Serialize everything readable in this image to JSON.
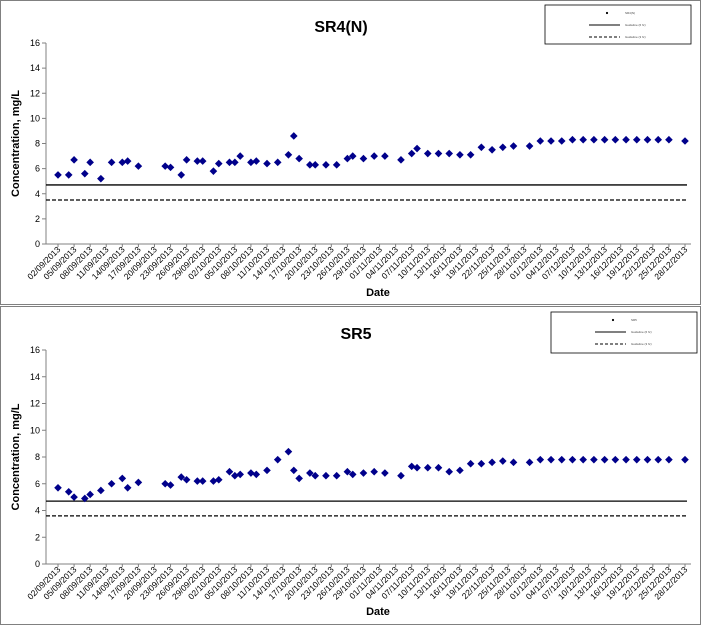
{
  "chart_data": [
    {
      "type": "scatter",
      "title": "SR4(N)",
      "xlabel": "Date",
      "ylabel": "Concentration, mg/L",
      "ylim": [
        0,
        16
      ],
      "yticks": [
        0,
        2,
        4,
        6,
        8,
        10,
        12,
        14,
        16
      ],
      "grid": false,
      "legend_position": "top-right",
      "x_tick_labels": [
        "02/09/2013",
        "05/09/2013",
        "08/09/2013",
        "11/09/2013",
        "14/09/2013",
        "17/09/2013",
        "20/09/2013",
        "23/09/2013",
        "26/09/2013",
        "29/09/2013",
        "02/10/2013",
        "05/10/2013",
        "08/10/2013",
        "11/10/2013",
        "14/10/2013",
        "17/10/2013",
        "20/10/2013",
        "23/10/2013",
        "26/10/2013",
        "29/10/2013",
        "01/11/2013",
        "04/11/2013",
        "07/11/2013",
        "10/11/2013",
        "13/11/2013",
        "16/11/2013",
        "19/11/2013",
        "22/11/2013",
        "25/11/2013",
        "28/11/2013",
        "01/12/2013",
        "04/12/2013",
        "07/12/2013",
        "10/12/2013",
        "13/12/2013",
        "16/12/2013",
        "19/12/2013",
        "22/12/2013",
        "25/12/2013",
        "28/12/2013"
      ],
      "series": [
        {
          "type": "scatter",
          "marker": "diamond",
          "color": "#00008b",
          "x": [
            "02/09/2013",
            "04/09/2013",
            "05/09/2013",
            "07/09/2013",
            "08/09/2013",
            "10/09/2013",
            "12/09/2013",
            "14/09/2013",
            "15/09/2013",
            "17/09/2013",
            "22/09/2013",
            "23/09/2013",
            "25/09/2013",
            "26/09/2013",
            "28/09/2013",
            "29/09/2013",
            "01/10/2013",
            "02/10/2013",
            "04/10/2013",
            "05/10/2013",
            "06/10/2013",
            "08/10/2013",
            "09/10/2013",
            "11/10/2013",
            "13/10/2013",
            "15/10/2013",
            "16/10/2013",
            "17/10/2013",
            "19/10/2013",
            "20/10/2013",
            "22/10/2013",
            "24/10/2013",
            "26/10/2013",
            "27/10/2013",
            "29/10/2013",
            "31/10/2013",
            "02/11/2013",
            "05/11/2013",
            "07/11/2013",
            "08/11/2013",
            "10/11/2013",
            "12/11/2013",
            "14/11/2013",
            "16/11/2013",
            "18/11/2013",
            "20/11/2013",
            "22/11/2013",
            "24/11/2013",
            "26/11/2013",
            "29/11/2013",
            "01/12/2013",
            "03/12/2013",
            "05/12/2013",
            "07/12/2013",
            "09/12/2013",
            "11/12/2013",
            "13/12/2013",
            "15/12/2013",
            "17/12/2013",
            "19/12/2013",
            "21/12/2013",
            "23/12/2013",
            "25/12/2013",
            "28/12/2013"
          ],
          "y": [
            5.5,
            5.5,
            6.7,
            5.6,
            6.5,
            5.2,
            6.5,
            6.5,
            6.6,
            6.2,
            6.2,
            6.1,
            5.5,
            6.7,
            6.6,
            6.6,
            5.8,
            6.4,
            6.5,
            6.5,
            7.0,
            6.5,
            6.6,
            6.4,
            6.5,
            7.1,
            8.6,
            6.8,
            6.3,
            6.3,
            6.3,
            6.3,
            6.8,
            7.0,
            6.8,
            7.0,
            7.0,
            6.7,
            7.2,
            7.6,
            7.2,
            7.2,
            7.2,
            7.1,
            7.1,
            7.7,
            7.5,
            7.7,
            7.8,
            7.8,
            8.2,
            8.2,
            8.2,
            8.3,
            8.3,
            8.3,
            8.3,
            8.3,
            8.3,
            8.3,
            8.3,
            8.3,
            8.3,
            8.2
          ]
        },
        {
          "type": "line",
          "style": "solid",
          "color": "#000000",
          "y": 4.7
        },
        {
          "type": "line",
          "style": "dashed",
          "color": "#000000",
          "y": 3.5
        }
      ],
      "legend": [
        {
          "marker": "dot",
          "label": "SR4(N)"
        },
        {
          "line": "solid",
          "label": "Guideline (6 hr)"
        },
        {
          "line": "dashed",
          "label": "Guideline (3 hr)"
        }
      ]
    },
    {
      "type": "scatter",
      "title": "SR5",
      "xlabel": "Date",
      "ylabel": "Concentration, mg/L",
      "ylim": [
        0,
        16
      ],
      "yticks": [
        0,
        2,
        4,
        6,
        8,
        10,
        12,
        14,
        16
      ],
      "grid": false,
      "legend_position": "top-right",
      "x_tick_labels": [
        "02/09/2013",
        "05/09/2013",
        "08/09/2013",
        "11/09/2013",
        "14/09/2013",
        "17/09/2013",
        "20/09/2013",
        "23/09/2013",
        "26/09/2013",
        "29/09/2013",
        "02/10/2013",
        "05/10/2013",
        "08/10/2013",
        "11/10/2013",
        "14/10/2013",
        "17/10/2013",
        "20/10/2013",
        "23/10/2013",
        "26/10/2013",
        "29/10/2013",
        "01/11/2013",
        "04/11/2013",
        "07/11/2013",
        "10/11/2013",
        "13/11/2013",
        "16/11/2013",
        "19/11/2013",
        "22/11/2013",
        "25/11/2013",
        "28/11/2013",
        "01/12/2013",
        "04/12/2013",
        "07/12/2013",
        "10/12/2013",
        "13/12/2013",
        "16/12/2013",
        "19/12/2013",
        "22/12/2013",
        "25/12/2013",
        "28/12/2013"
      ],
      "series": [
        {
          "type": "scatter",
          "marker": "diamond",
          "color": "#00008b",
          "x": [
            "02/09/2013",
            "04/09/2013",
            "05/09/2013",
            "07/09/2013",
            "08/09/2013",
            "10/09/2013",
            "12/09/2013",
            "14/09/2013",
            "15/09/2013",
            "17/09/2013",
            "22/09/2013",
            "23/09/2013",
            "25/09/2013",
            "26/09/2013",
            "28/09/2013",
            "29/09/2013",
            "01/10/2013",
            "02/10/2013",
            "04/10/2013",
            "05/10/2013",
            "06/10/2013",
            "08/10/2013",
            "09/10/2013",
            "11/10/2013",
            "13/10/2013",
            "15/10/2013",
            "16/10/2013",
            "17/10/2013",
            "19/10/2013",
            "20/10/2013",
            "22/10/2013",
            "24/10/2013",
            "26/10/2013",
            "27/10/2013",
            "29/10/2013",
            "31/10/2013",
            "02/11/2013",
            "05/11/2013",
            "07/11/2013",
            "08/11/2013",
            "10/11/2013",
            "12/11/2013",
            "14/11/2013",
            "16/11/2013",
            "18/11/2013",
            "20/11/2013",
            "22/11/2013",
            "24/11/2013",
            "26/11/2013",
            "29/11/2013",
            "01/12/2013",
            "03/12/2013",
            "05/12/2013",
            "07/12/2013",
            "09/12/2013",
            "11/12/2013",
            "13/12/2013",
            "15/12/2013",
            "17/12/2013",
            "19/12/2013",
            "21/12/2013",
            "23/12/2013",
            "25/12/2013",
            "28/12/2013"
          ],
          "y": [
            5.7,
            5.4,
            5.0,
            4.9,
            5.2,
            5.5,
            6.0,
            6.4,
            5.7,
            6.1,
            6.0,
            5.9,
            6.5,
            6.3,
            6.2,
            6.2,
            6.2,
            6.3,
            6.9,
            6.6,
            6.7,
            6.8,
            6.7,
            7.0,
            7.8,
            8.4,
            7.0,
            6.4,
            6.8,
            6.6,
            6.6,
            6.6,
            6.9,
            6.7,
            6.8,
            6.9,
            6.8,
            6.6,
            7.3,
            7.2,
            7.2,
            7.2,
            6.9,
            7.0,
            7.5,
            7.5,
            7.6,
            7.7,
            7.6,
            7.6,
            7.8,
            7.8,
            7.8,
            7.8,
            7.8,
            7.8,
            7.8,
            7.8,
            7.8,
            7.8,
            7.8,
            7.8,
            7.8,
            7.8
          ]
        },
        {
          "type": "line",
          "style": "solid",
          "color": "#000000",
          "y": 4.7
        },
        {
          "type": "line",
          "style": "dashed",
          "color": "#000000",
          "y": 3.6
        }
      ],
      "legend": [
        {
          "marker": "dot",
          "label": "SR5"
        },
        {
          "line": "solid",
          "label": "Guideline (6 hr)"
        },
        {
          "line": "dashed",
          "label": "Guideline (3 hr)"
        }
      ]
    }
  ]
}
